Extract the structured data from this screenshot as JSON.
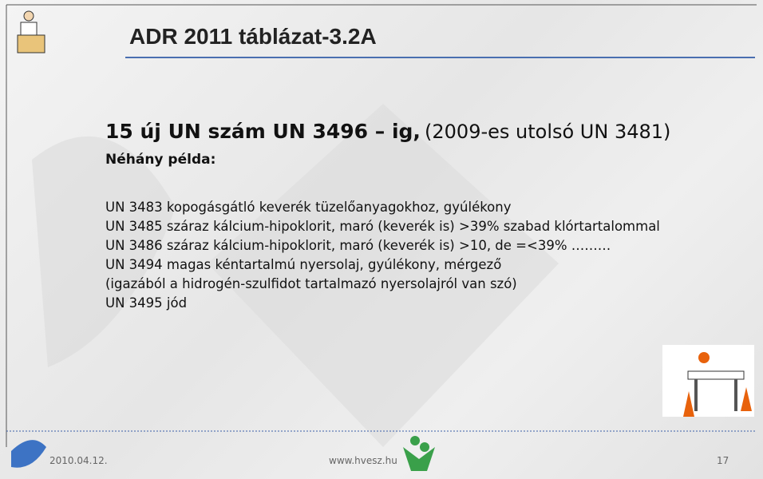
{
  "header": {
    "title": "ADR 2011 táblázat-3.2A"
  },
  "body": {
    "heading_bold": "15 új UN szám UN 3496 – ig,",
    "heading_normal": "(2009-es utolsó UN 3481)",
    "subheading": "Néhány példa:",
    "lines": [
      "UN 3483 kopogásgátló keverék tüzelőanyagokhoz, gyúlékony",
      "UN 3485 száraz kálcium-hipoklorit, maró (keverék is) >39% szabad klórtartalommal",
      "UN 3486 száraz kálcium-hipoklorit, maró (keverék is) >10, de =<39% ………",
      "UN 3494 magas kéntartalmú nyersolaj, gyúlékony, mérgező",
      "(igazából a hidrogén-szulfidot tartalmazó nyersolajról van szó)",
      "UN 3495 jód"
    ]
  },
  "footer": {
    "date": "2010.04.12.",
    "url": "www.hvesz.hu",
    "page": "17"
  }
}
